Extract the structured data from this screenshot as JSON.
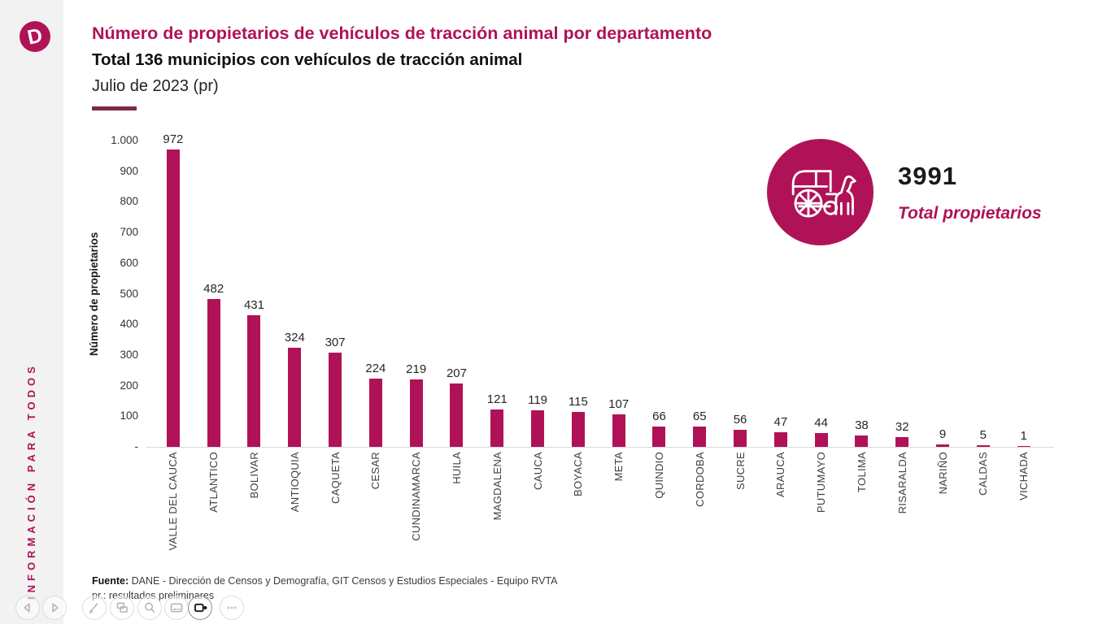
{
  "brand": {
    "accent": "#B01257",
    "underline": "#7D2B4A",
    "logo_letter": "D"
  },
  "sidebar": {
    "tagline": "INFORMACIÓN PARA TODOS"
  },
  "header": {
    "title": "Número de propietarios de vehículos de tracción animal por departamento",
    "subtitle": "Total 136 municipios con vehículos de tracción animal",
    "period": "Julio de 2023 (pr)"
  },
  "kpi": {
    "icon": "horse-carriage-icon",
    "value": "3991",
    "label": "Total propietarios"
  },
  "chart_data": {
    "type": "bar",
    "title": "Número de propietarios de vehículos de tracción animal por departamento",
    "categories": [
      "VALLE DEL CAUCA",
      "ATLANTICO",
      "BOLIVAR",
      "ANTIOQUIA",
      "CAQUETA",
      "CESAR",
      "CUNDINAMARCA",
      "HUILA",
      "MAGDALENA",
      "CAUCA",
      "BOYACA",
      "META",
      "QUINDIO",
      "CORDOBA",
      "SUCRE",
      "ARAUCA",
      "PUTUMAYO",
      "TOLIMA",
      "RISARALDA",
      "NARIÑO",
      "CALDAS",
      "VICHADA"
    ],
    "values": [
      972,
      482,
      431,
      324,
      307,
      224,
      219,
      207,
      121,
      119,
      115,
      107,
      66,
      65,
      56,
      47,
      44,
      38,
      32,
      9,
      5,
      1
    ],
    "xlabel": "",
    "ylabel": "Número de propietarios",
    "ylim": [
      0,
      1000
    ],
    "ytick_labels": [
      "-",
      "100",
      "200",
      "300",
      "400",
      "500",
      "600",
      "700",
      "800",
      "900",
      "1.000"
    ],
    "bar_color": "#B01257",
    "grid": false,
    "data_labels": true,
    "legend": "none"
  },
  "footer": {
    "source_label": "Fuente:",
    "source_text": "DANE - Dirección de Censos y Demografía, GIT Censos y Estudios Especiales - Equipo RVTA",
    "note": "pr.:  resultados preliminares"
  },
  "toolbar": {
    "buttons": [
      "previous",
      "next",
      "pen",
      "see-all-slides",
      "zoom",
      "subtitles",
      "camera",
      "more-options"
    ],
    "active_button": "camera"
  }
}
